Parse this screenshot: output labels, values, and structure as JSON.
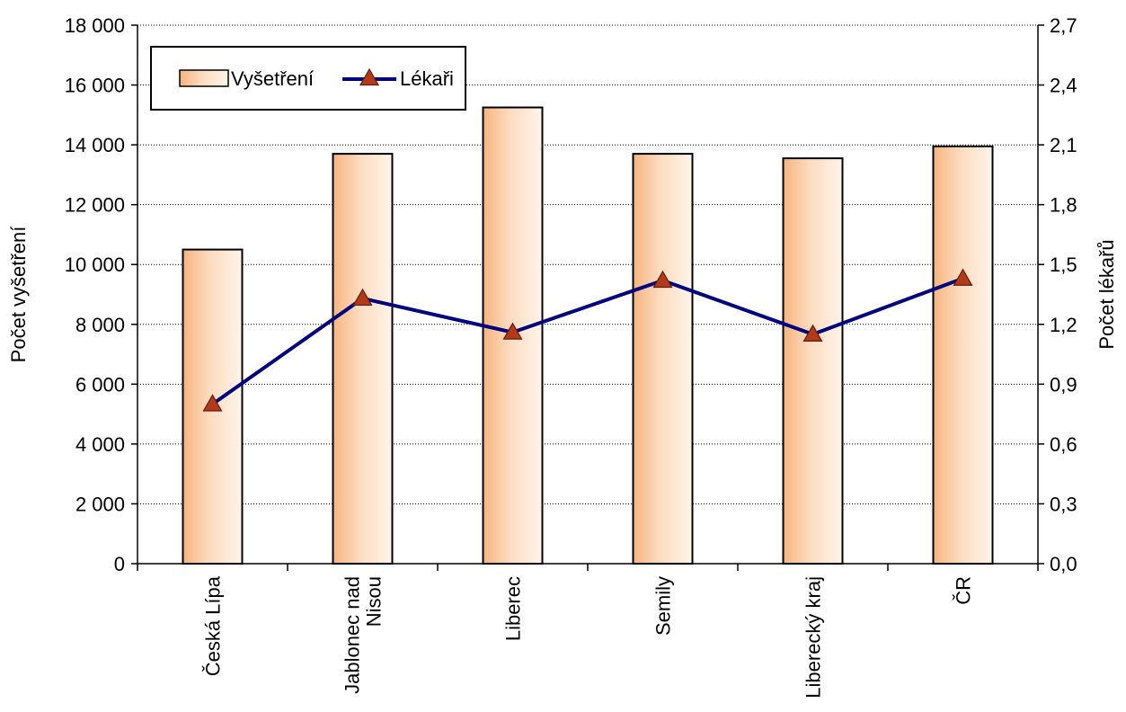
{
  "chart_data": {
    "type": "bar",
    "categories": [
      "Česká Lípa",
      "Jablonec nad Nisou",
      "Liberec",
      "Semily",
      "Liberecký kraj",
      "ČR"
    ],
    "series": [
      {
        "name": "Vyšetření",
        "type": "bar",
        "axis": "left",
        "values": [
          10500,
          13700,
          15250,
          13700,
          13550,
          13950
        ],
        "color": "#fbd3b0"
      },
      {
        "name": "Lékaři",
        "type": "line",
        "axis": "right",
        "values": [
          0.8,
          1.33,
          1.16,
          1.42,
          1.15,
          1.43
        ],
        "color": "#000080",
        "marker": "triangle",
        "marker_color": "#b03a1a"
      }
    ],
    "ylabel": "Počet vyšetření",
    "y2label": "Počet lékařů",
    "ylim": [
      0,
      18000
    ],
    "y2lim": [
      0,
      2.7
    ],
    "yticks": [
      "0",
      "2 000",
      "4 000",
      "6 000",
      "8 000",
      "10 000",
      "12 000",
      "14 000",
      "16 000",
      "18 000"
    ],
    "y2ticks": [
      "0,0",
      "0,3",
      "0,6",
      "0,9",
      "1,2",
      "1,5",
      "1,8",
      "2,1",
      "2,4",
      "2,7"
    ],
    "category_lines": [
      [
        "Česká Lípa"
      ],
      [
        "Jablonec nad",
        "Nisou"
      ],
      [
        "Liberec"
      ],
      [
        "Semily"
      ],
      [
        "Liberecký kraj"
      ],
      [
        "ČR"
      ]
    ],
    "grid": true,
    "legend_position": "top-left"
  }
}
